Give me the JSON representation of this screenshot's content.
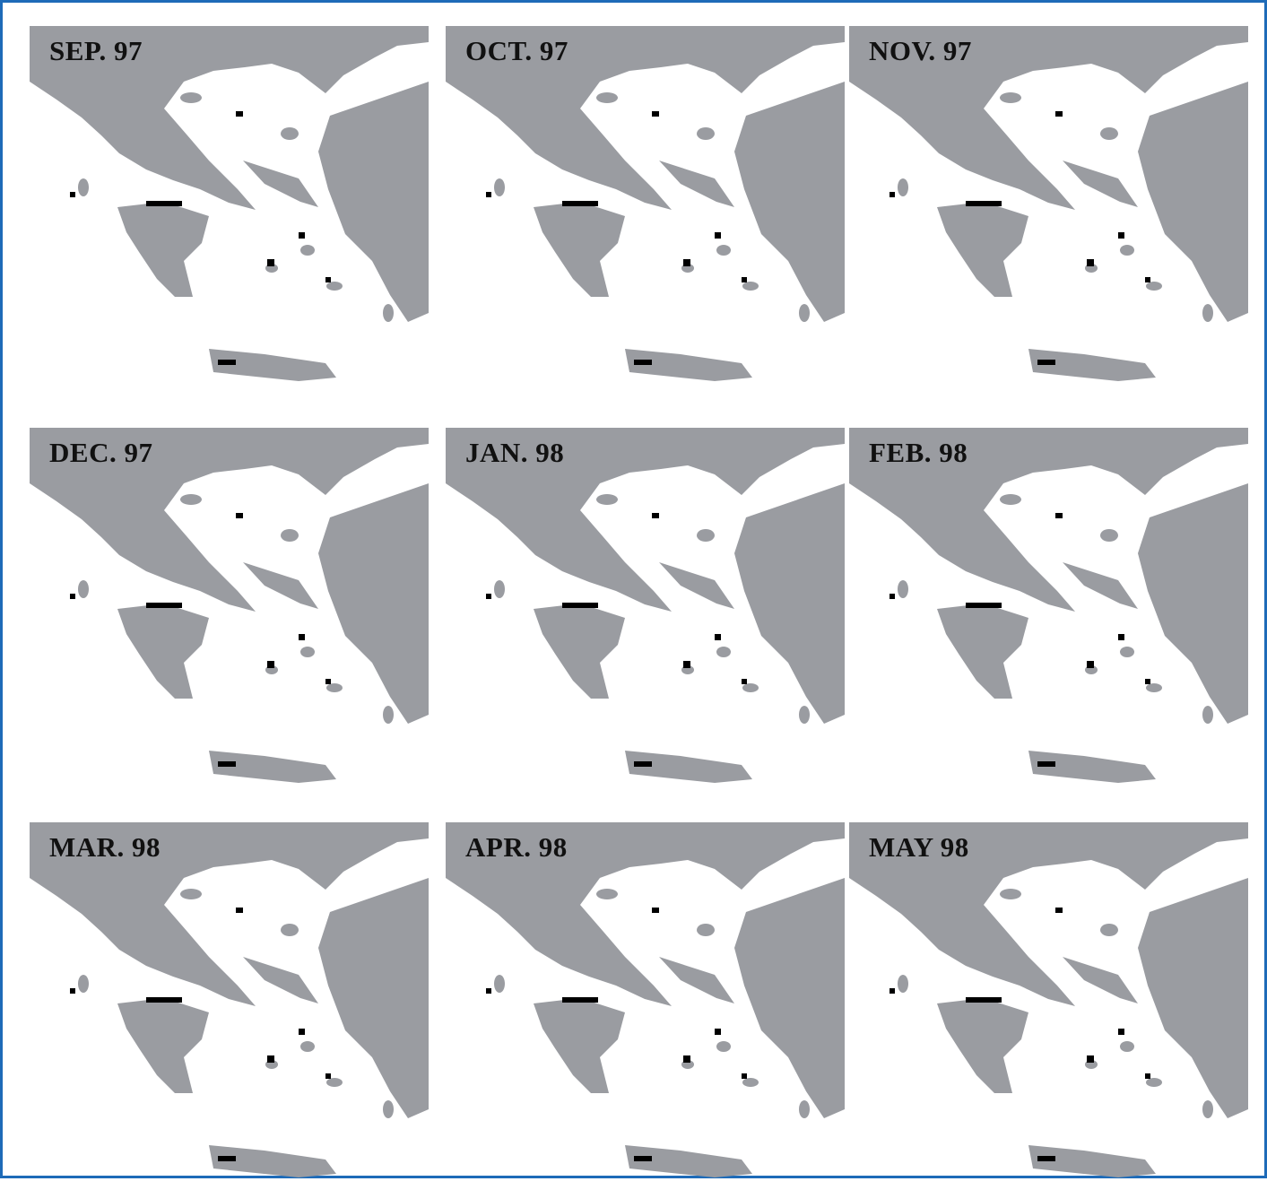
{
  "panels": [
    {
      "label": "SEP. 97"
    },
    {
      "label": "OCT. 97"
    },
    {
      "label": "NOV. 97"
    },
    {
      "label": "DEC. 97"
    },
    {
      "label": "JAN. 98"
    },
    {
      "label": "FEB. 98"
    },
    {
      "label": "MAR. 98"
    },
    {
      "label": "APR. 98"
    },
    {
      "label": "MAY 98"
    }
  ]
}
